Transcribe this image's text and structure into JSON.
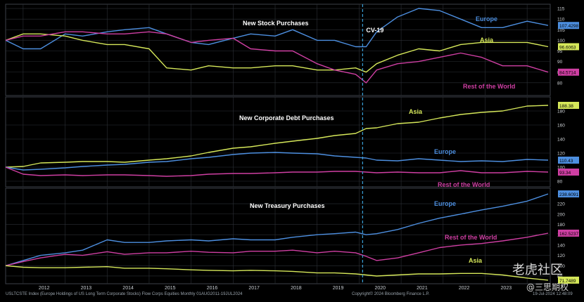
{
  "chart_data": [
    {
      "type": "line",
      "title": "New Stock Purchases",
      "x": [
        "2011-08",
        "2012-01",
        "2012-06",
        "2013-01",
        "2013-06",
        "2014-01",
        "2014-06",
        "2015-01",
        "2015-06",
        "2016-01",
        "2016-06",
        "2017-01",
        "2017-06",
        "2018-01",
        "2018-06",
        "2019-01",
        "2019-06",
        "2019-12",
        "2020-03",
        "2020-06",
        "2020-12",
        "2021-06",
        "2021-12",
        "2022-06",
        "2022-12",
        "2023-06",
        "2024-01",
        "2024-07"
      ],
      "series": [
        {
          "name": "Europe",
          "color": "#4d8fe0",
          "last_label": "107.4298",
          "values": [
            100,
            96,
            96,
            103,
            102,
            104,
            105,
            106,
            103,
            99,
            98,
            101,
            103,
            102,
            105,
            100,
            100,
            97,
            97,
            104,
            111,
            115,
            114,
            110,
            106,
            106,
            109,
            107
          ]
        },
        {
          "name": "Asia",
          "color": "#d6e85a",
          "last_label": "96.6063",
          "values": [
            100,
            103,
            103,
            102,
            100,
            98,
            98,
            96,
            87,
            86,
            88,
            87,
            87,
            88,
            88,
            86,
            86,
            87,
            85,
            89,
            93,
            96,
            95,
            98,
            99,
            99,
            99,
            97
          ]
        },
        {
          "name": "Rest of the World",
          "color": "#cf3fa3",
          "last_label": "84.5714",
          "values": [
            100,
            102,
            102,
            104,
            104,
            103,
            103,
            104,
            103,
            99,
            100,
            101,
            96,
            95,
            95,
            89,
            86,
            84,
            80,
            86,
            89,
            90,
            92,
            94,
            92,
            88,
            88,
            85
          ]
        }
      ],
      "ylim": [
        74,
        117
      ],
      "yticks": [
        80,
        85,
        90,
        95,
        100,
        105,
        110,
        115
      ],
      "annotation": "CV-19"
    },
    {
      "type": "line",
      "title": "New Corporate Debt Purchases",
      "x": [
        "2011-08",
        "2012-01",
        "2012-06",
        "2013-01",
        "2013-06",
        "2014-01",
        "2014-06",
        "2015-01",
        "2015-06",
        "2016-01",
        "2016-06",
        "2017-01",
        "2017-06",
        "2018-01",
        "2018-06",
        "2019-01",
        "2019-06",
        "2019-12",
        "2020-03",
        "2020-06",
        "2020-12",
        "2021-06",
        "2021-12",
        "2022-06",
        "2022-12",
        "2023-06",
        "2024-01",
        "2024-07"
      ],
      "series": [
        {
          "name": "Asia",
          "color": "#d6e85a",
          "last_label": "188.38",
          "values": [
            100,
            101,
            106,
            107,
            108,
            108,
            107,
            110,
            112,
            116,
            121,
            127,
            129,
            134,
            137,
            141,
            145,
            148,
            155,
            156,
            162,
            164,
            170,
            175,
            178,
            180,
            187,
            188
          ]
        },
        {
          "name": "Europe",
          "color": "#4d8fe0",
          "last_label": "110.43",
          "values": [
            100,
            96,
            97,
            99,
            101,
            103,
            104,
            107,
            108,
            112,
            114,
            118,
            120,
            121,
            120,
            119,
            116,
            114,
            113,
            110,
            109,
            112,
            110,
            108,
            109,
            108,
            111,
            110
          ]
        },
        {
          "name": "Rest of the World",
          "color": "#cf3fa3",
          "last_label": "93.34",
          "values": [
            100,
            90,
            88,
            89,
            88,
            89,
            89,
            88,
            87,
            88,
            90,
            91,
            91,
            92,
            93,
            93,
            94,
            94,
            93,
            92,
            93,
            92,
            92,
            95,
            92,
            92,
            94,
            93
          ]
        }
      ],
      "ylim": [
        72,
        200
      ],
      "yticks": [
        80,
        100,
        120,
        140,
        160,
        180
      ]
    },
    {
      "type": "line",
      "title": "New Treasury Purchases",
      "x": [
        "2011-08",
        "2012-01",
        "2012-06",
        "2013-01",
        "2013-06",
        "2014-01",
        "2014-06",
        "2015-01",
        "2015-06",
        "2016-01",
        "2016-06",
        "2017-01",
        "2017-06",
        "2018-01",
        "2018-06",
        "2019-01",
        "2019-06",
        "2019-12",
        "2020-03",
        "2020-06",
        "2020-12",
        "2021-06",
        "2021-12",
        "2022-06",
        "2022-12",
        "2023-06",
        "2024-01",
        "2024-07"
      ],
      "series": [
        {
          "name": "Europe",
          "color": "#4d8fe0",
          "last_label": "238.6091",
          "values": [
            100,
            110,
            120,
            125,
            130,
            150,
            145,
            145,
            148,
            150,
            148,
            152,
            150,
            150,
            155,
            160,
            162,
            165,
            160,
            162,
            170,
            182,
            192,
            200,
            208,
            215,
            225,
            239
          ]
        },
        {
          "name": "Rest of the World",
          "color": "#cf3fa3",
          "last_label": "162.5237",
          "values": [
            100,
            108,
            115,
            122,
            120,
            127,
            122,
            125,
            125,
            128,
            126,
            125,
            128,
            128,
            130,
            125,
            128,
            125,
            118,
            110,
            115,
            125,
            135,
            140,
            143,
            148,
            155,
            163
          ]
        },
        {
          "name": "Asia",
          "color": "#d6e85a",
          "last_label": "71.7489",
          "values": [
            100,
            97,
            96,
            96,
            97,
            98,
            95,
            95,
            94,
            92,
            91,
            90,
            91,
            90,
            89,
            86,
            86,
            84,
            82,
            80,
            82,
            84,
            84,
            85,
            85,
            82,
            76,
            72
          ]
        }
      ],
      "ylim": [
        65,
        250
      ],
      "yticks": [
        80,
        100,
        120,
        140,
        160,
        180,
        200,
        220
      ]
    }
  ],
  "x_axis": {
    "tick_labels": [
      "2012",
      "2013",
      "2014",
      "2015",
      "2016",
      "2017",
      "2018",
      "2019",
      "2020",
      "2021",
      "2022",
      "2023"
    ]
  },
  "footer": {
    "left": "USLTCSTE Index (Europe Holdings of US Long Term Corporate Stocks) Flow Corps Equities  Monthly 01AUG2011-19JUL2024",
    "copyright": "Copyright© 2024 Bloomberg Finance L.P.",
    "timestamp": "19-Jul-2024 12:48:09"
  },
  "watermark": {
    "brand": "老虎社区",
    "handle": "@三思期权"
  },
  "colors": {
    "background": "#000000",
    "panel_border": "#3b4048",
    "grid": "#2c3036",
    "axis_text": "#ffffff",
    "covid_line": "#3aa0d8"
  }
}
